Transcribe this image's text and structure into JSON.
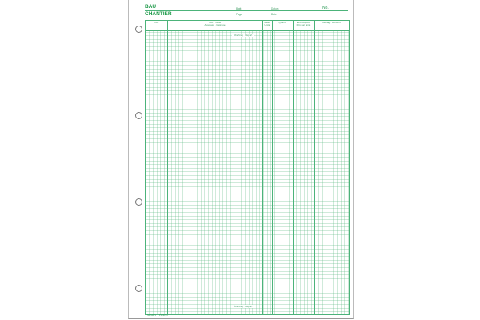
{
  "header": {
    "title1": "BAU",
    "title2": "CHANTIER",
    "blatt": "Blatt",
    "page": "Page",
    "datum": "Datum",
    "date": "Date",
    "no": "No."
  },
  "columns": [
    {
      "l1": "",
      "l2": "Pos."
    },
    {
      "l1": "Text · Texte",
      "l2": "Ausmass · Métrage"
    },
    {
      "l1": "Mass",
      "l2": "Unité"
    },
    {
      "l1": "",
      "l2": "Quant."
    },
    {
      "l1": "Einheitspreis",
      "l2": "Prix par unité"
    },
    {
      "l1": "",
      "l2": "Betrag · Montant"
    }
  ],
  "carry_top": "Übertrag · Report",
  "carry_bottom": "Übertrag · Report",
  "footer": {
    "code1": "NWGB71",
    "code2": "FW/3274"
  },
  "colors": {
    "ink": "#2a9a55"
  }
}
